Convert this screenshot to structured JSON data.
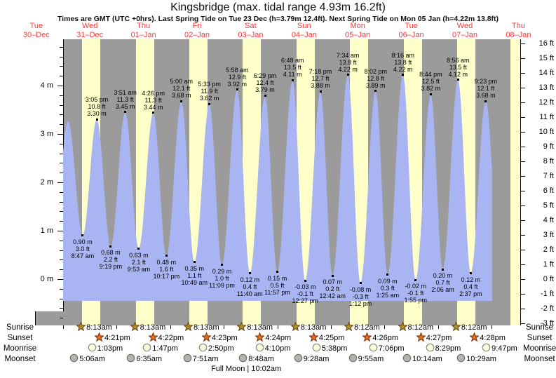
{
  "title": "Kingsbridge (max. tidal range 4.93m 16.2ft)",
  "subtitle": "Times are GMT (UTC +0hrs). Last Spring Tide on Tue 23 Dec (h=3.79m 12.4ft). Next Spring Tide on Mon 05 Jan (h=4.22m 13.8ft)",
  "days": [
    {
      "dow": "Tue",
      "date": "30–Dec"
    },
    {
      "dow": "Wed",
      "date": "31–Dec"
    },
    {
      "dow": "Thu",
      "date": "01–Jan"
    },
    {
      "dow": "Fri",
      "date": "02–Jan"
    },
    {
      "dow": "Sat",
      "date": "03–Jan"
    },
    {
      "dow": "Sun",
      "date": "04–Jan"
    },
    {
      "dow": "Mon",
      "date": "05–Jan"
    },
    {
      "dow": "Tue",
      "date": "06–Jan"
    },
    {
      "dow": "Wed",
      "date": "07–Jan"
    },
    {
      "dow": "Thu",
      "date": "08–Jan"
    }
  ],
  "chart_data": {
    "type": "area",
    "title": "Kingsbridge tide curve, Wed 31 Dec – Thu 08 Jan",
    "x_unit": "hours from Wed 31-Dec 00:00",
    "left_axis": {
      "unit": "m",
      "min": 0,
      "max": 4,
      "step": 1,
      "minor_step": 0.2
    },
    "right_axis": {
      "unit": "ft",
      "min": -3,
      "max": 16,
      "step": 1
    },
    "colors": {
      "night": "#9b9b9b",
      "daylight": "#ffffc9",
      "water": "#a9b5f2",
      "day_label": "#f63b3b"
    },
    "extremes": [
      {
        "h": -4.2,
        "m": 0.85,
        "type": "low",
        "lines": null
      },
      {
        "h": 2.2,
        "m": 3.27,
        "type": "high",
        "lines": null
      },
      {
        "h": 8.78,
        "m": 0.9,
        "type": "low",
        "lines": [
          "0.90 m",
          "3.0 ft",
          "8:47 am"
        ]
      },
      {
        "h": 15.08,
        "m": 3.3,
        "type": "high",
        "lines": [
          "3:05 pm",
          "10.8 ft",
          "3.30 m"
        ]
      },
      {
        "h": 21.32,
        "m": 0.68,
        "type": "low",
        "lines": [
          "0.68 m",
          "2.2 ft",
          "9:19 pm"
        ]
      },
      {
        "h": 27.85,
        "m": 3.45,
        "type": "high",
        "lines": [
          "3:51 am",
          "11.3 ft",
          "3.45 m"
        ]
      },
      {
        "h": 33.88,
        "m": 0.63,
        "type": "low",
        "lines": [
          "0.63 m",
          "2.1 ft",
          "9:53 am"
        ]
      },
      {
        "h": 40.43,
        "m": 3.44,
        "type": "high",
        "lines": [
          "4:26 pm",
          "11.3 ft",
          "3.44 m"
        ]
      },
      {
        "h": 46.28,
        "m": 0.48,
        "type": "low",
        "lines": [
          "0.48 m",
          "1.6 ft",
          "10:17 pm"
        ]
      },
      {
        "h": 53.0,
        "m": 3.68,
        "type": "high",
        "lines": [
          "5:00 am",
          "12.1 ft",
          "3.68 m"
        ]
      },
      {
        "h": 58.82,
        "m": 0.35,
        "type": "low",
        "lines": [
          "0.35 m",
          "1.1 ft",
          "10:49 am"
        ]
      },
      {
        "h": 65.55,
        "m": 3.62,
        "type": "high",
        "lines": [
          "5:33 pm",
          "11.9 ft",
          "3.62 m"
        ]
      },
      {
        "h": 71.15,
        "m": 0.29,
        "type": "low",
        "lines": [
          "0.29 m",
          "1.0 ft",
          "11:09 pm"
        ]
      },
      {
        "h": 77.97,
        "m": 3.92,
        "type": "high",
        "lines": [
          "5:58 am",
          "12.9 ft",
          "3.92 m"
        ]
      },
      {
        "h": 83.67,
        "m": 0.12,
        "type": "low",
        "lines": [
          "0.12 m",
          "0.4 ft",
          "11:40 am"
        ]
      },
      {
        "h": 90.48,
        "m": 3.79,
        "type": "high",
        "lines": [
          "6:29 pm",
          "12.4 ft",
          "3.79 m"
        ]
      },
      {
        "h": 95.95,
        "m": 0.15,
        "type": "low",
        "lines": [
          "0.15 m",
          "0.5 ft",
          "11:57 pm"
        ]
      },
      {
        "h": 102.8,
        "m": 4.11,
        "type": "high",
        "lines": [
          "6:48 am",
          "13.5 ft",
          "4.11 m"
        ]
      },
      {
        "h": 108.45,
        "m": -0.03,
        "type": "low",
        "lines": [
          "-0.03 m",
          "-0.1 ft",
          "12:27 pm"
        ]
      },
      {
        "h": 115.3,
        "m": 3.88,
        "type": "high",
        "lines": [
          "7:18 pm",
          "12.7 ft",
          "3.88 m"
        ]
      },
      {
        "h": 120.7,
        "m": 0.07,
        "type": "low",
        "lines": [
          "0.07 m",
          "0.2 ft",
          "12:42 am"
        ]
      },
      {
        "h": 127.57,
        "m": 4.22,
        "type": "high",
        "lines": [
          "7:34 am",
          "13.8 ft",
          "4.22 m"
        ]
      },
      {
        "h": 133.2,
        "m": -0.08,
        "type": "low",
        "lines": [
          "-0.08 m",
          "-0.3 ft",
          "1:12 pm"
        ]
      },
      {
        "h": 140.03,
        "m": 3.89,
        "type": "high",
        "lines": [
          "8:02 pm",
          "12.8 ft",
          "3.89 m"
        ]
      },
      {
        "h": 145.42,
        "m": 0.09,
        "type": "low",
        "lines": [
          "0.09 m",
          "0.3 ft",
          "1:25 am"
        ]
      },
      {
        "h": 152.27,
        "m": 4.22,
        "type": "high",
        "lines": [
          "8:16 am",
          "13.8 ft",
          "4.22 m"
        ]
      },
      {
        "h": 157.92,
        "m": -0.02,
        "type": "low",
        "lines": [
          "-0.02 m",
          "-0.1 ft",
          "1:55 pm"
        ]
      },
      {
        "h": 164.73,
        "m": 3.82,
        "type": "high",
        "lines": [
          "8:44 pm",
          "12.5 ft",
          "3.82 m"
        ]
      },
      {
        "h": 170.1,
        "m": 0.2,
        "type": "low",
        "lines": [
          "0.20 m",
          "0.7 ft",
          "2:06 am"
        ]
      },
      {
        "h": 176.93,
        "m": 4.12,
        "type": "high",
        "lines": [
          "8:56 am",
          "13.5 ft",
          "4.12 m"
        ]
      },
      {
        "h": 182.62,
        "m": 0.12,
        "type": "low",
        "lines": [
          "0.12 m",
          "0.4 ft",
          "2:37 pm"
        ]
      },
      {
        "h": 189.38,
        "m": 3.68,
        "type": "high",
        "lines": [
          "9:23 pm",
          "12.1 ft",
          "3.68 m"
        ]
      },
      {
        "h": 195.6,
        "m": 0.25,
        "type": "low",
        "lines": null
      }
    ]
  },
  "astro": {
    "sunrise": {
      "label": "Sunrise",
      "times": [
        {
          "t": "8:13am",
          "h": 8.22
        },
        {
          "t": "8:13am",
          "h": 32.22
        },
        {
          "t": "8:13am",
          "h": 56.22
        },
        {
          "t": "8:13am",
          "h": 80.22
        },
        {
          "t": "8:13am",
          "h": 104.22
        },
        {
          "t": "8:12am",
          "h": 128.2
        },
        {
          "t": "8:12am",
          "h": 152.2
        },
        {
          "t": "8:12am",
          "h": 176.2
        }
      ]
    },
    "sunset": {
      "label": "Sunset",
      "times": [
        {
          "t": "4:21pm",
          "h": 16.35
        },
        {
          "t": "4:22pm",
          "h": 40.37
        },
        {
          "t": "4:23pm",
          "h": 64.38
        },
        {
          "t": "4:24pm",
          "h": 88.4
        },
        {
          "t": "4:25pm",
          "h": 112.42
        },
        {
          "t": "4:26pm",
          "h": 136.43
        },
        {
          "t": "4:27pm",
          "h": 160.45
        },
        {
          "t": "4:28pm",
          "h": 184.47
        }
      ]
    },
    "moonrise": {
      "label": "Moonrise",
      "times": [
        {
          "t": "1:03pm",
          "h": 13.05
        },
        {
          "t": "1:47pm",
          "h": 37.78
        },
        {
          "t": "2:50pm",
          "h": 62.83
        },
        {
          "t": "4:10pm",
          "h": 88.17
        },
        {
          "t": "5:38pm",
          "h": 113.63
        },
        {
          "t": "7:06pm",
          "h": 139.1
        },
        {
          "t": "8:29pm",
          "h": 164.48
        },
        {
          "t": "9:47pm",
          "h": 189.78
        }
      ]
    },
    "moonset": {
      "label": "Moonset",
      "times": [
        {
          "t": "5:06am",
          "h": 5.1
        },
        {
          "t": "6:35am",
          "h": 30.58
        },
        {
          "t": "7:51am",
          "h": 55.85
        },
        {
          "t": "8:48am",
          "h": 80.8
        },
        {
          "t": "9:28am",
          "h": 105.47
        },
        {
          "t": "9:55am",
          "h": 129.92
        },
        {
          "t": "10:14am",
          "h": 154.23
        },
        {
          "t": "10:29am",
          "h": 178.48
        }
      ]
    },
    "full_moon": {
      "text": "Full Moon | 10:02am",
      "h": 82.03
    }
  }
}
